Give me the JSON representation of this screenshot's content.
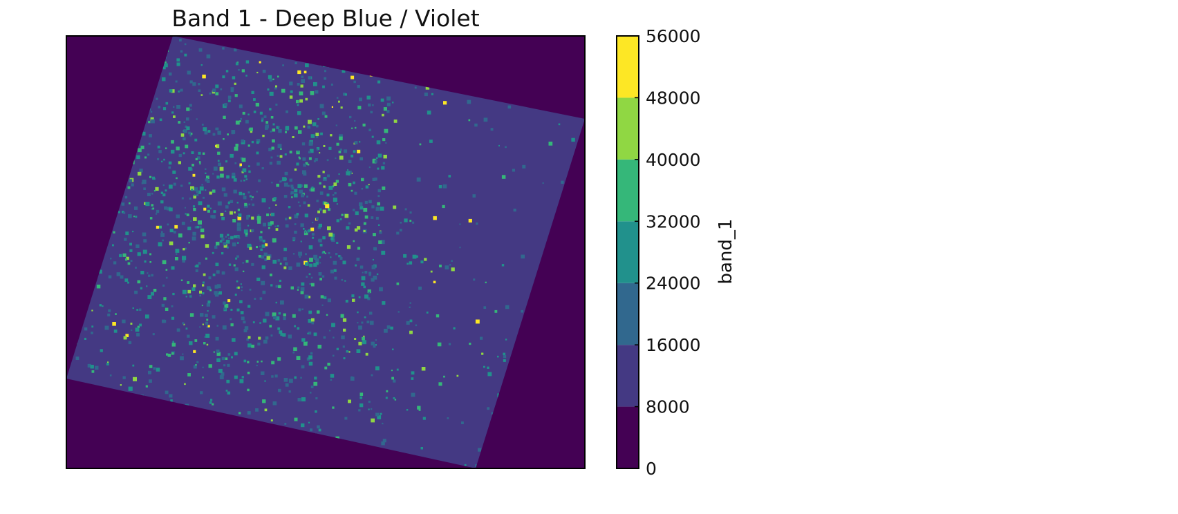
{
  "chart_data": {
    "type": "heatmap",
    "title": "Band 1 - Deep Blue / Violet",
    "xlabel": "",
    "ylabel": "",
    "grid": false,
    "axis_ticks": false,
    "colorbar": {
      "label": "band_1",
      "position": "right",
      "range": [
        0,
        56000
      ],
      "ticks": [
        0,
        8000,
        16000,
        24000,
        32000,
        40000,
        48000,
        56000
      ],
      "tick_labels": [
        "0",
        "8000",
        "16000",
        "24000",
        "32000",
        "40000",
        "48000",
        "56000"
      ],
      "levels": [
        {
          "min": 0,
          "max": 8000,
          "color": "#440154"
        },
        {
          "min": 8000,
          "max": 16000,
          "color": "#443983"
        },
        {
          "min": 16000,
          "max": 24000,
          "color": "#31688e"
        },
        {
          "min": 24000,
          "max": 32000,
          "color": "#21918c"
        },
        {
          "min": 32000,
          "max": 40000,
          "color": "#35b779"
        },
        {
          "min": 40000,
          "max": 48000,
          "color": "#90d743"
        },
        {
          "min": 48000,
          "max": 56000,
          "color": "#fde725"
        }
      ]
    },
    "image": {
      "description_colormap": "viridis",
      "background_value": 0,
      "scene_base_value": 12000,
      "rotation_deg": 14
    }
  }
}
